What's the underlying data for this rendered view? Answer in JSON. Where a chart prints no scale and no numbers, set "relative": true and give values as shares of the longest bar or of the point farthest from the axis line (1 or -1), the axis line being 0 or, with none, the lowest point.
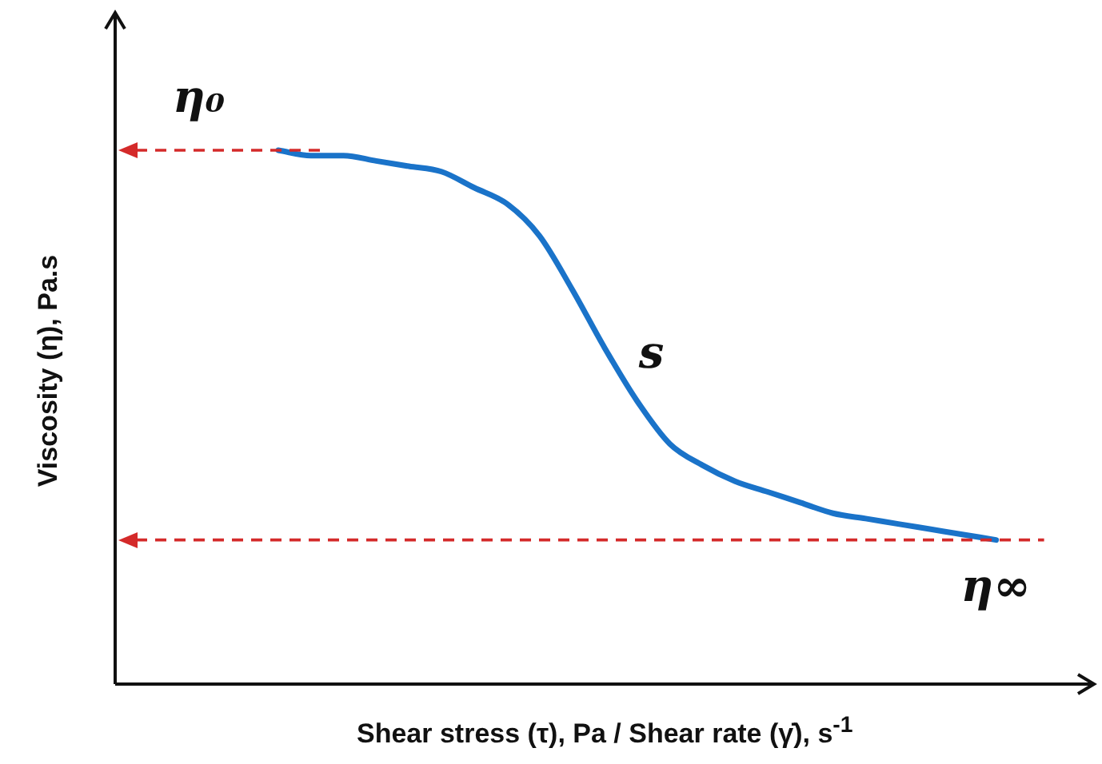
{
  "chart_data": {
    "type": "line",
    "relative": true,
    "xlabel": "Shear stress (τ), Pa / Shear rate (γ̇), s$^{-1}$",
    "ylabel": "Viscosity (η), Pa.s",
    "categories": [
      null,
      null,
      null,
      null,
      null,
      null,
      null,
      null,
      null,
      null,
      null,
      null,
      null,
      null,
      null,
      null,
      null,
      null,
      null,
      null,
      null,
      null,
      null,
      null,
      null,
      null,
      null,
      null,
      null,
      null,
      null
    ],
    "series": [
      {
        "color": "#1a73c9",
        "values": [
          null,
          null,
          null,
          null,
          null,
          1,
          0.99,
          0.99,
          0.98,
          0.97,
          0.96,
          0.93,
          0.9,
          0.84,
          0.74,
          0.63,
          0.53,
          0.45,
          0.41,
          0.38,
          0.36,
          0.34,
          0.32,
          0.31,
          0.3,
          0.29,
          0.28,
          0.27,
          null,
          null,
          null
        ]
      }
    ],
    "ref_lines": [
      {
        "axis": "y",
        "value": 1,
        "label": "η₀",
        "color": "#d42a2a",
        "line_style": "dashed"
      },
      {
        "axis": "y",
        "value": 0.27,
        "label": "η∞",
        "color": "#d42a2a",
        "line_style": "dashed"
      }
    ],
    "annotations": [
      "s"
    ],
    "marker": "none",
    "line_style": "solid"
  }
}
